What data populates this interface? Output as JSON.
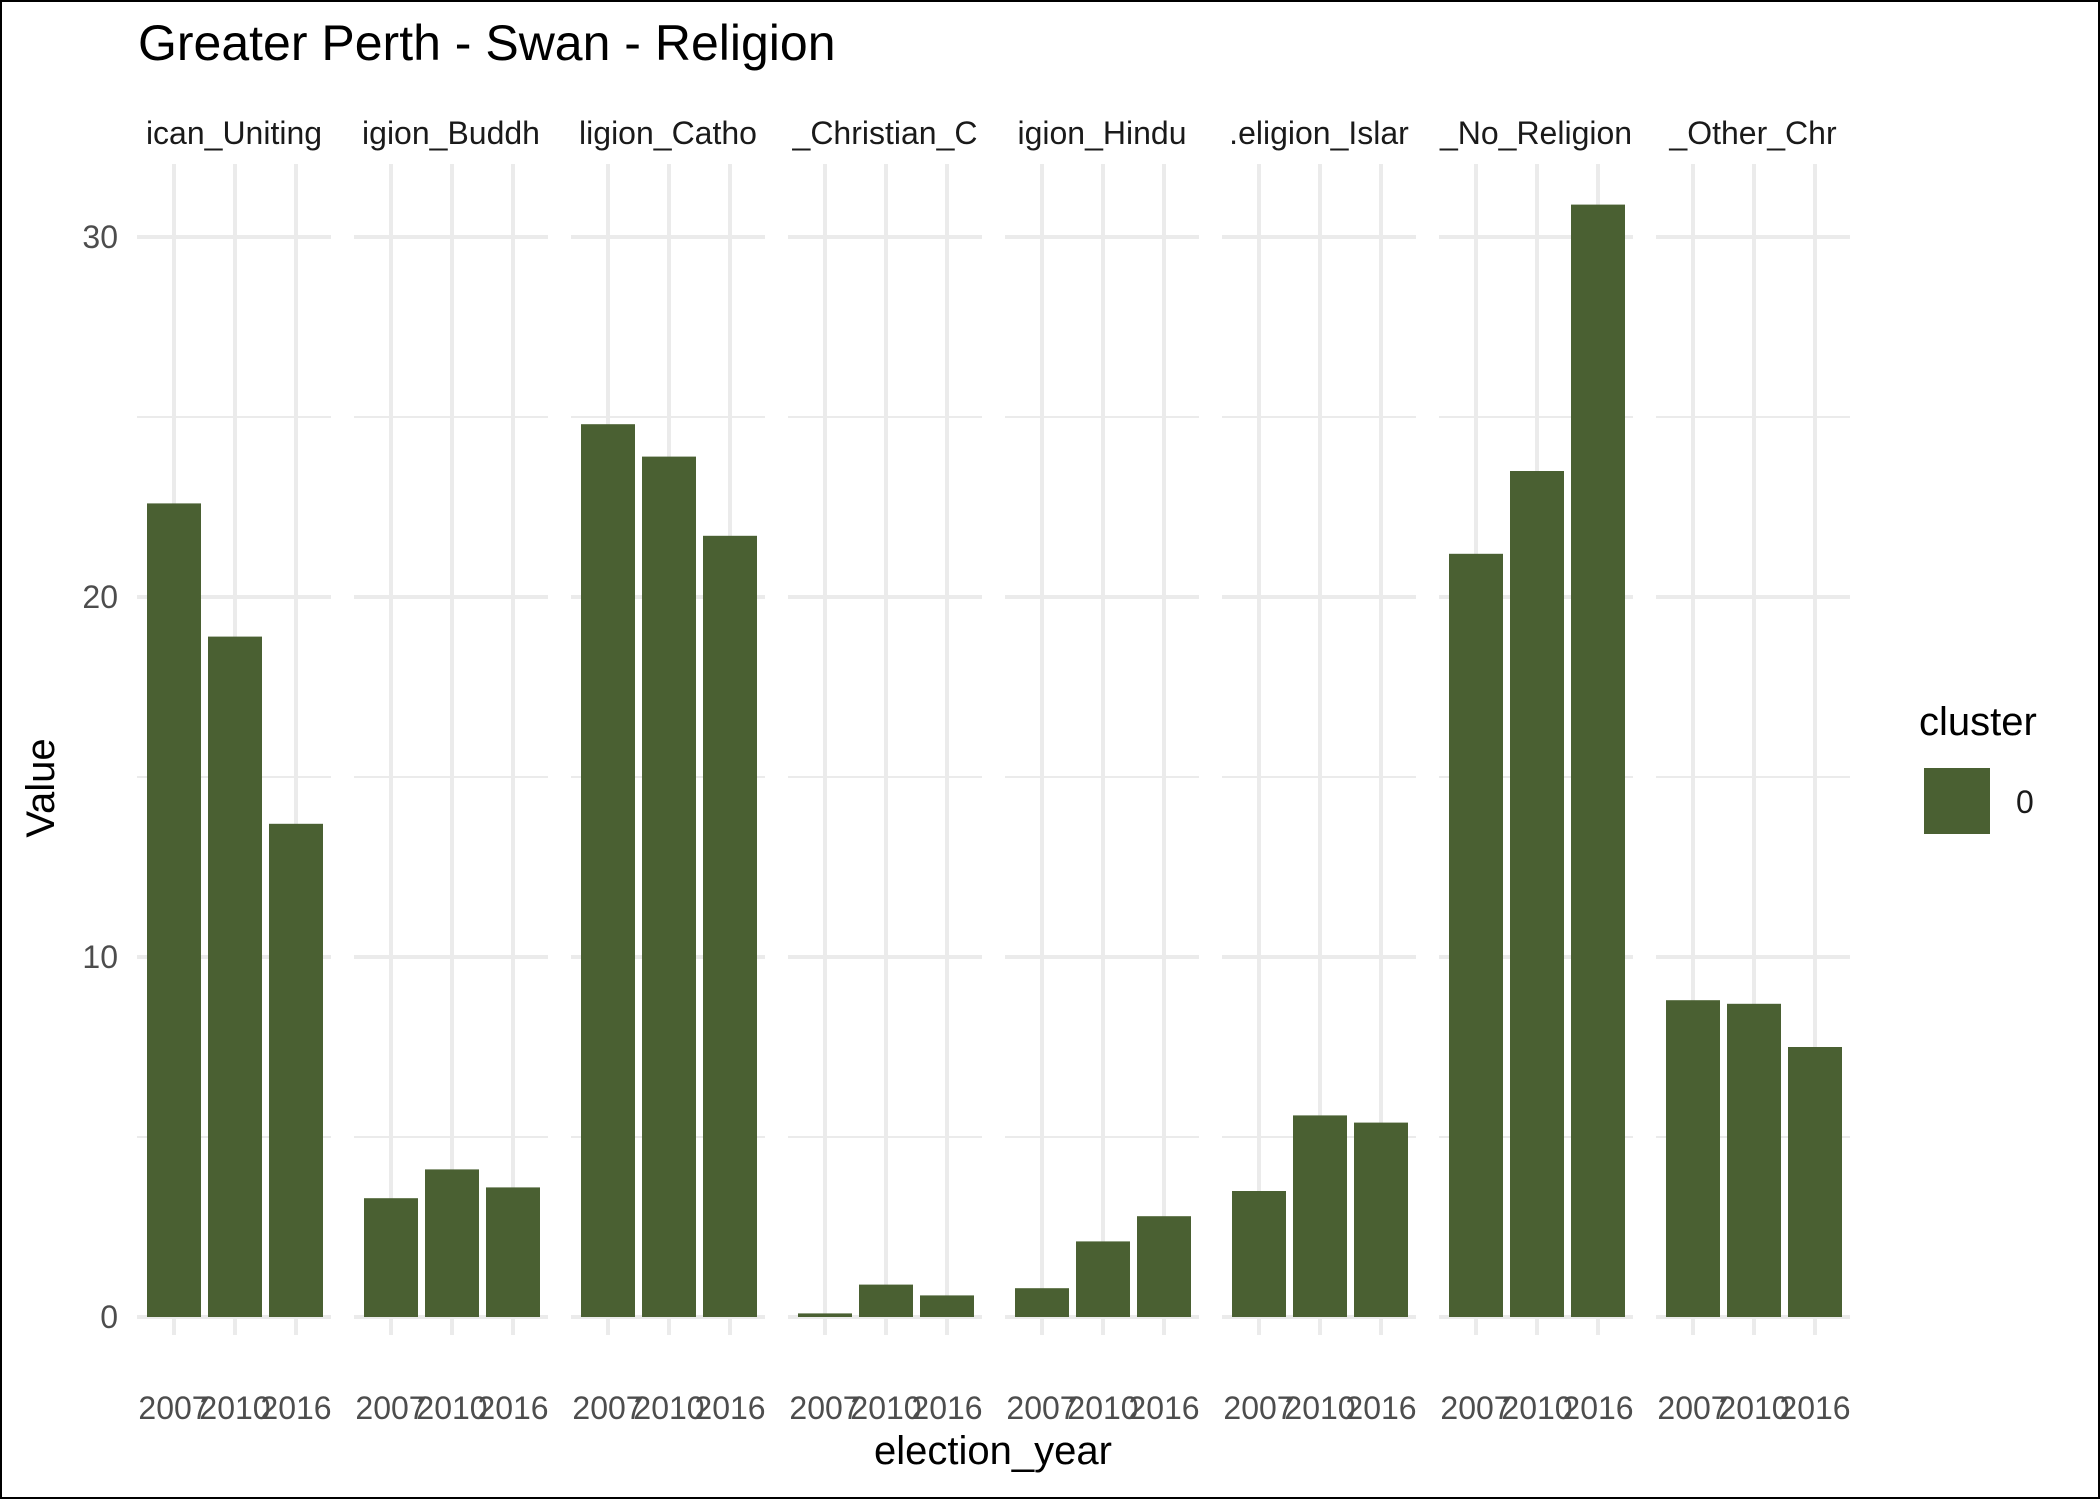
{
  "chart_data": {
    "type": "bar",
    "title": "Greater Perth - Swan - Religion",
    "xlabel": "election_year",
    "ylabel": "Value",
    "ylim": [
      0,
      32
    ],
    "yticks": [
      0,
      10,
      20,
      30
    ],
    "grid": true,
    "bar_color": "#4a6032",
    "categories": [
      "2007",
      "2010",
      "2016"
    ],
    "facets": [
      {
        "label": "ican_Uniting",
        "values": [
          22.6,
          18.9,
          13.7
        ]
      },
      {
        "label": "igion_Buddh",
        "values": [
          3.3,
          4.1,
          3.6
        ]
      },
      {
        "label": "ligion_Catho",
        "values": [
          24.8,
          23.9,
          21.7
        ]
      },
      {
        "label": "_Christian_C",
        "values": [
          0.1,
          0.9,
          0.6
        ]
      },
      {
        "label": "igion_Hindu",
        "values": [
          0.8,
          2.1,
          2.8
        ]
      },
      {
        "label": ".eligion_Islar",
        "values": [
          3.5,
          5.6,
          5.4
        ]
      },
      {
        "label": "_No_Religion",
        "values": [
          21.2,
          23.5,
          30.9
        ]
      },
      {
        "label": "_Other_Chr",
        "values": [
          8.8,
          8.7,
          7.5
        ]
      }
    ],
    "legend": {
      "title": "cluster",
      "placement": "right",
      "items": [
        {
          "label": "0",
          "color": "#4a6032"
        }
      ]
    }
  }
}
